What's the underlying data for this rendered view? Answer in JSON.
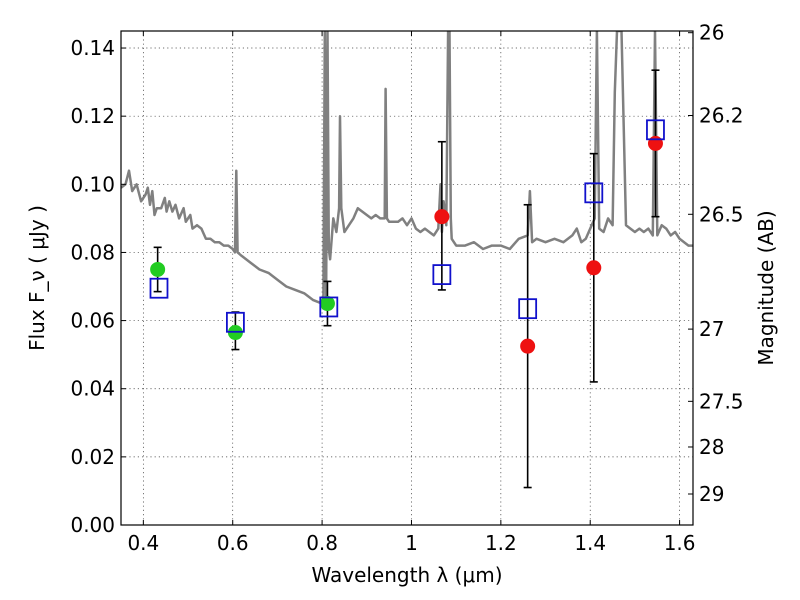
{
  "chart_data": {
    "type": "scatter",
    "xlabel": "Wavelength  λ (μm)",
    "ylabel": "Flux  F_ν  ( μJy )",
    "ylabel_right": "Magnitude (AB)",
    "xlim": [
      0.35,
      1.63
    ],
    "ylim": [
      0.0,
      0.145
    ],
    "grid": true,
    "x_ticks": [
      {
        "value": 0.4,
        "label": "0.4"
      },
      {
        "value": 0.6,
        "label": "0.6"
      },
      {
        "value": 0.8,
        "label": "0.8"
      },
      {
        "value": 1.0,
        "label": "1"
      },
      {
        "value": 1.2,
        "label": "1.2"
      },
      {
        "value": 1.4,
        "label": "1.4"
      },
      {
        "value": 1.6,
        "label": "1.6"
      }
    ],
    "y_ticks": [
      {
        "value": 0.0,
        "label": "0.00"
      },
      {
        "value": 0.02,
        "label": "0.02"
      },
      {
        "value": 0.04,
        "label": "0.04"
      },
      {
        "value": 0.06,
        "label": "0.06"
      },
      {
        "value": 0.08,
        "label": "0.08"
      },
      {
        "value": 0.1,
        "label": "0.10"
      },
      {
        "value": 0.12,
        "label": "0.12"
      },
      {
        "value": 0.14,
        "label": "0.14"
      }
    ],
    "right_ticks": [
      {
        "flux": 0.1445,
        "label": "26"
      },
      {
        "flux": 0.1202,
        "label": "26.2"
      },
      {
        "flux": 0.0912,
        "label": "26.5"
      },
      {
        "flux": 0.0575,
        "label": "27"
      },
      {
        "flux": 0.0363,
        "label": "27.5"
      },
      {
        "flux": 0.0229,
        "label": "28"
      },
      {
        "flux": 0.0091,
        "label": "29"
      }
    ],
    "series": [
      {
        "kind": "line",
        "color": "#808080",
        "points": [
          [
            0.35,
            0.099
          ],
          [
            0.36,
            0.1
          ],
          [
            0.368,
            0.104
          ],
          [
            0.375,
            0.098
          ],
          [
            0.385,
            0.1
          ],
          [
            0.395,
            0.095
          ],
          [
            0.405,
            0.097
          ],
          [
            0.41,
            0.099
          ],
          [
            0.415,
            0.094
          ],
          [
            0.42,
            0.098
          ],
          [
            0.425,
            0.091
          ],
          [
            0.43,
            0.093
          ],
          [
            0.44,
            0.093
          ],
          [
            0.448,
            0.096
          ],
          [
            0.452,
            0.092
          ],
          [
            0.458,
            0.095
          ],
          [
            0.465,
            0.092
          ],
          [
            0.472,
            0.094
          ],
          [
            0.48,
            0.09
          ],
          [
            0.49,
            0.093
          ],
          [
            0.495,
            0.089
          ],
          [
            0.5,
            0.09
          ],
          [
            0.505,
            0.091
          ],
          [
            0.51,
            0.087
          ],
          [
            0.52,
            0.088
          ],
          [
            0.53,
            0.087
          ],
          [
            0.54,
            0.084
          ],
          [
            0.55,
            0.084
          ],
          [
            0.56,
            0.083
          ],
          [
            0.57,
            0.083
          ],
          [
            0.58,
            0.082
          ],
          [
            0.59,
            0.082
          ],
          [
            0.6,
            0.081
          ],
          [
            0.605,
            0.08
          ],
          [
            0.608,
            0.104
          ],
          [
            0.611,
            0.08
          ],
          [
            0.62,
            0.079
          ],
          [
            0.64,
            0.077
          ],
          [
            0.66,
            0.075
          ],
          [
            0.68,
            0.074
          ],
          [
            0.7,
            0.072
          ],
          [
            0.72,
            0.07
          ],
          [
            0.74,
            0.069
          ],
          [
            0.76,
            0.068
          ],
          [
            0.78,
            0.066
          ],
          [
            0.8,
            0.065
          ],
          [
            0.803,
            0.066
          ],
          [
            0.806,
            0.145
          ],
          [
            0.809,
            0.065
          ],
          [
            0.812,
            0.145
          ],
          [
            0.815,
            0.081
          ],
          [
            0.818,
            0.078
          ],
          [
            0.825,
            0.09
          ],
          [
            0.832,
            0.086
          ],
          [
            0.838,
            0.093
          ],
          [
            0.84,
            0.12
          ],
          [
            0.843,
            0.093
          ],
          [
            0.85,
            0.086
          ],
          [
            0.86,
            0.088
          ],
          [
            0.87,
            0.09
          ],
          [
            0.88,
            0.093
          ],
          [
            0.89,
            0.092
          ],
          [
            0.9,
            0.091
          ],
          [
            0.91,
            0.09
          ],
          [
            0.92,
            0.091
          ],
          [
            0.93,
            0.09
          ],
          [
            0.94,
            0.09
          ],
          [
            0.942,
            0.128
          ],
          [
            0.945,
            0.09
          ],
          [
            0.95,
            0.089
          ],
          [
            0.96,
            0.089
          ],
          [
            0.97,
            0.089
          ],
          [
            0.98,
            0.09
          ],
          [
            0.99,
            0.088
          ],
          [
            1.0,
            0.09
          ],
          [
            1.01,
            0.087
          ],
          [
            1.02,
            0.086
          ],
          [
            1.03,
            0.087
          ],
          [
            1.04,
            0.086
          ],
          [
            1.05,
            0.085
          ],
          [
            1.06,
            0.087
          ],
          [
            1.065,
            0.1
          ],
          [
            1.068,
            0.086
          ],
          [
            1.072,
            0.095
          ],
          [
            1.078,
            0.088
          ],
          [
            1.082,
            0.145
          ],
          [
            1.085,
            0.145
          ],
          [
            1.088,
            0.09
          ],
          [
            1.09,
            0.084
          ],
          [
            1.1,
            0.082
          ],
          [
            1.12,
            0.082
          ],
          [
            1.14,
            0.083
          ],
          [
            1.16,
            0.081
          ],
          [
            1.18,
            0.082
          ],
          [
            1.2,
            0.082
          ],
          [
            1.22,
            0.081
          ],
          [
            1.24,
            0.084
          ],
          [
            1.26,
            0.085
          ],
          [
            1.265,
            0.098
          ],
          [
            1.27,
            0.083
          ],
          [
            1.28,
            0.084
          ],
          [
            1.3,
            0.083
          ],
          [
            1.32,
            0.084
          ],
          [
            1.34,
            0.083
          ],
          [
            1.36,
            0.085
          ],
          [
            1.37,
            0.087
          ],
          [
            1.38,
            0.083
          ],
          [
            1.39,
            0.084
          ],
          [
            1.4,
            0.087
          ],
          [
            1.41,
            0.09
          ],
          [
            1.415,
            0.145
          ],
          [
            1.42,
            0.087
          ],
          [
            1.43,
            0.086
          ],
          [
            1.44,
            0.09
          ],
          [
            1.45,
            0.088
          ],
          [
            1.455,
            0.127
          ],
          [
            1.46,
            0.145
          ],
          [
            1.47,
            0.145
          ],
          [
            1.48,
            0.088
          ],
          [
            1.49,
            0.087
          ],
          [
            1.5,
            0.086
          ],
          [
            1.51,
            0.087
          ],
          [
            1.52,
            0.086
          ],
          [
            1.53,
            0.087
          ],
          [
            1.54,
            0.085
          ],
          [
            1.545,
            0.145
          ],
          [
            1.55,
            0.085
          ],
          [
            1.56,
            0.088
          ],
          [
            1.57,
            0.087
          ],
          [
            1.58,
            0.085
          ],
          [
            1.59,
            0.086
          ],
          [
            1.6,
            0.084
          ],
          [
            1.61,
            0.083
          ],
          [
            1.62,
            0.082
          ],
          [
            1.63,
            0.082
          ]
        ]
      },
      {
        "kind": "points",
        "marker": "circle",
        "color": "#22cc22",
        "points": [
          {
            "x": 0.432,
            "y": 0.075,
            "err_lo": 0.0685,
            "err_hi": 0.0815
          },
          {
            "x": 0.606,
            "y": 0.0565,
            "err_lo": 0.0515,
            "err_hi": 0.0625
          },
          {
            "x": 0.812,
            "y": 0.065,
            "err_lo": 0.0585,
            "err_hi": 0.0715
          }
        ]
      },
      {
        "kind": "points",
        "marker": "circle",
        "color": "#ee1111",
        "points": [
          {
            "x": 1.068,
            "y": 0.0905,
            "err_lo": 0.069,
            "err_hi": 0.1125
          },
          {
            "x": 1.26,
            "y": 0.0525,
            "err_lo": 0.011,
            "err_hi": 0.094
          },
          {
            "x": 1.408,
            "y": 0.0755,
            "err_lo": 0.042,
            "err_hi": 0.109
          },
          {
            "x": 1.546,
            "y": 0.112,
            "err_lo": 0.0905,
            "err_hi": 0.1335
          }
        ]
      },
      {
        "kind": "points",
        "marker": "open-square",
        "color": "#1111cc",
        "points": [
          {
            "x": 0.435,
            "y": 0.0695
          },
          {
            "x": 0.606,
            "y": 0.0595
          },
          {
            "x": 0.815,
            "y": 0.064
          },
          {
            "x": 1.068,
            "y": 0.0735
          },
          {
            "x": 1.26,
            "y": 0.0635
          },
          {
            "x": 1.408,
            "y": 0.0975
          },
          {
            "x": 1.546,
            "y": 0.116
          }
        ]
      }
    ]
  }
}
